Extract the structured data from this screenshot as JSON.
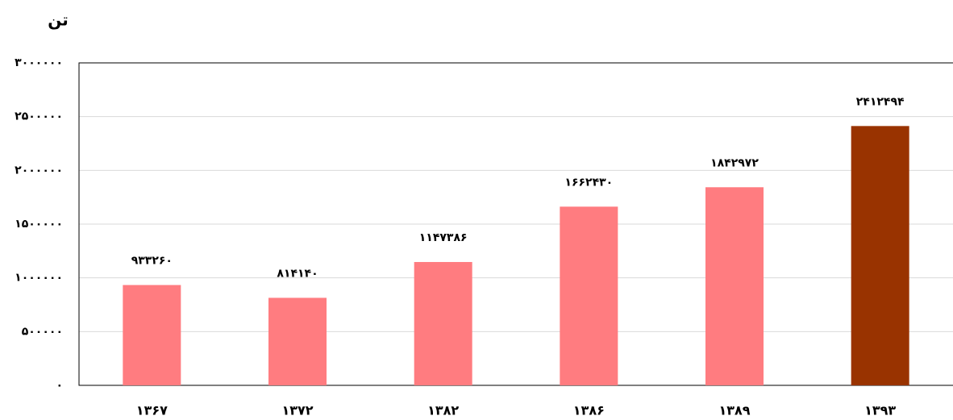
{
  "chart_data": {
    "type": "bar",
    "y_label": "تن",
    "categories": [
      "۱۳۶۷",
      "۱۳۷۲",
      "۱۳۸۲",
      "۱۳۸۶",
      "۱۳۸۹",
      "۱۳۹۳"
    ],
    "values": [
      933260,
      814140,
      1147386,
      1662430,
      1842972,
      2412494
    ],
    "value_labels": [
      "۹۳۳۲۶۰",
      "۸۱۴۱۴۰",
      "۱۱۴۷۳۸۶",
      "۱۶۶۲۴۳۰",
      "۱۸۴۲۹۷۲",
      "۲۴۱۲۴۹۴"
    ],
    "colors": [
      "#ff7c80",
      "#ff7c80",
      "#ff7c80",
      "#ff7c80",
      "#ff7c80",
      "#993300"
    ],
    "ylim": [
      0,
      3000000
    ],
    "yticks": [
      {
        "value": 0,
        "label": "۰"
      },
      {
        "value": 500000,
        "label": "۵۰۰۰۰۰"
      },
      {
        "value": 1000000,
        "label": "۱۰۰۰۰۰۰"
      },
      {
        "value": 1500000,
        "label": "۱۵۰۰۰۰۰"
      },
      {
        "value": 2000000,
        "label": "۲۰۰۰۰۰۰"
      },
      {
        "value": 2500000,
        "label": "۲۵۰۰۰۰۰"
      },
      {
        "value": 3000000,
        "label": "۳۰۰۰۰۰۰"
      }
    ],
    "grid": true
  }
}
